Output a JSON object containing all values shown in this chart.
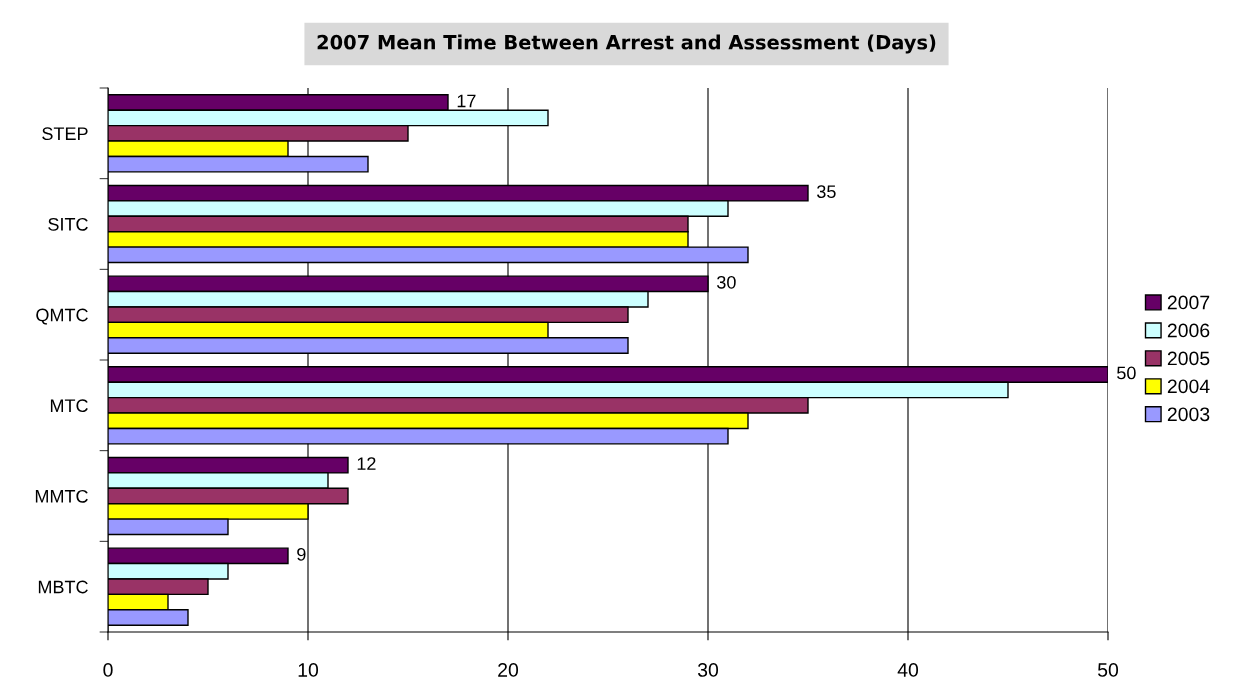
{
  "chart_data": {
    "type": "bar",
    "orientation": "horizontal",
    "title": "2007 Mean Time Between Arrest and Assessment (Days)",
    "categories": [
      "STEP",
      "SITC",
      "QMTC",
      "MTC",
      "MMTC",
      "MBTC"
    ],
    "series": [
      {
        "name": "2007",
        "color": "#660066",
        "values": [
          17,
          35,
          30,
          50,
          12,
          9
        ],
        "value_labels": [
          "17",
          "35",
          "30",
          "50",
          "12",
          "9"
        ]
      },
      {
        "name": "2006",
        "color": "#ccffff",
        "values": [
          22,
          31,
          27,
          45,
          11,
          6
        ]
      },
      {
        "name": "2005",
        "color": "#993366",
        "values": [
          15,
          29,
          26,
          35,
          12,
          5
        ]
      },
      {
        "name": "2004",
        "color": "#ffff00",
        "values": [
          9,
          29,
          22,
          32,
          10,
          3
        ]
      },
      {
        "name": "2003",
        "color": "#9999ff",
        "values": [
          13,
          32,
          26,
          31,
          6,
          4
        ]
      }
    ],
    "xlim": [
      0,
      50
    ],
    "xticks": [
      0,
      10,
      20,
      30,
      40,
      50
    ],
    "grid": "x",
    "legend": "right"
  }
}
